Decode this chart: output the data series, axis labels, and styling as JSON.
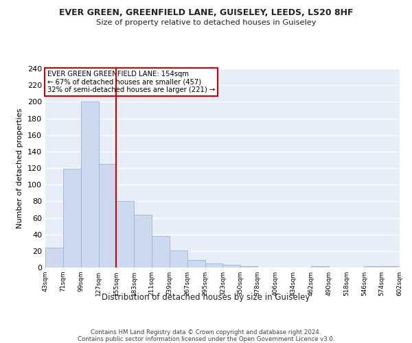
{
  "title": "EVER GREEN, GREENFIELD LANE, GUISELEY, LEEDS, LS20 8HF",
  "subtitle": "Size of property relative to detached houses in Guiseley",
  "xlabel": "Distribution of detached houses by size in Guiseley",
  "ylabel": "Number of detached properties",
  "bin_edges": [
    43,
    71,
    99,
    127,
    155,
    183,
    211,
    239,
    267,
    295,
    323,
    350,
    378,
    406,
    434,
    462,
    490,
    518,
    546,
    574,
    602
  ],
  "bar_heights": [
    24,
    119,
    200,
    125,
    80,
    64,
    38,
    21,
    9,
    5,
    3,
    2,
    0,
    0,
    0,
    2,
    0,
    0,
    2,
    2
  ],
  "bar_color": "#ccd9ef",
  "bar_edge_color": "#9ab3d5",
  "background_color": "#e8eef8",
  "grid_color": "#ffffff",
  "fig_bg_color": "#ffffff",
  "vline_x": 155,
  "vline_color": "#cc0000",
  "annotation_text": "EVER GREEN GREENFIELD LANE: 154sqm\n← 67% of detached houses are smaller (457)\n32% of semi-detached houses are larger (221) →",
  "annotation_box_color": "#ffffff",
  "annotation_box_edge": "#cc0000",
  "footnote": "Contains HM Land Registry data © Crown copyright and database right 2024.\nContains public sector information licensed under the Open Government Licence v3.0.",
  "ylim": [
    0,
    240
  ],
  "yticks": [
    0,
    20,
    40,
    60,
    80,
    100,
    120,
    140,
    160,
    180,
    200,
    220,
    240
  ],
  "tick_labels": [
    "43sqm",
    "71sqm",
    "99sqm",
    "127sqm",
    "155sqm",
    "183sqm",
    "211sqm",
    "239sqm",
    "267sqm",
    "295sqm",
    "323sqm",
    "350sqm",
    "378sqm",
    "406sqm",
    "434sqm",
    "462sqm",
    "490sqm",
    "518sqm",
    "546sqm",
    "574sqm",
    "602sqm"
  ]
}
